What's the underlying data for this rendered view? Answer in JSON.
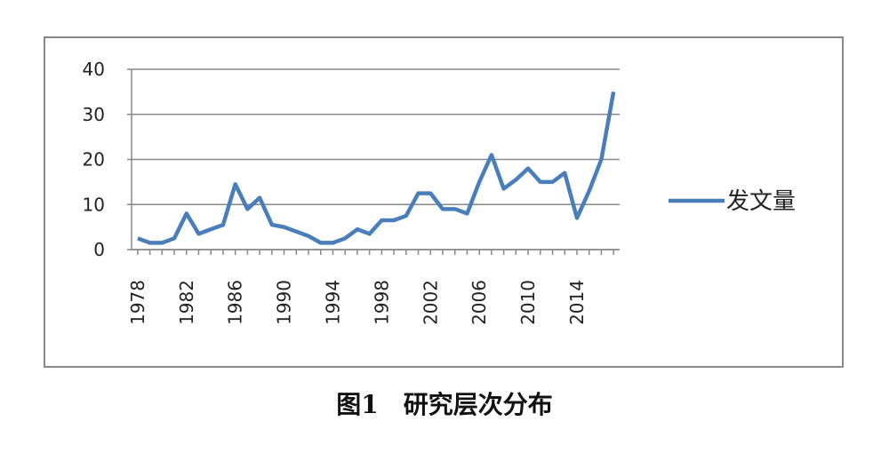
{
  "chart_data": {
    "type": "line",
    "x": [
      1978,
      1979,
      1980,
      1981,
      1982,
      1983,
      1984,
      1985,
      1986,
      1987,
      1988,
      1989,
      1990,
      1991,
      1992,
      1993,
      1994,
      1995,
      1996,
      1997,
      1998,
      1999,
      2000,
      2001,
      2002,
      2003,
      2004,
      2005,
      2006,
      2007,
      2008,
      2009,
      2010,
      2011,
      2012,
      2013,
      2014,
      2015,
      2016,
      2017
    ],
    "series": [
      {
        "name": "发文量",
        "color": "#4a7ebb",
        "values": [
          2.5,
          1.5,
          1.5,
          2.5,
          8,
          3.5,
          4.5,
          5.5,
          14.5,
          9,
          11.5,
          5.5,
          5,
          4,
          3,
          1.5,
          1.5,
          2.5,
          4.5,
          3.5,
          6.5,
          6.5,
          7.5,
          12.5,
          12.5,
          9,
          9,
          8,
          15,
          21,
          13.5,
          15.5,
          18,
          15,
          15,
          17,
          7,
          13,
          20,
          35
        ]
      }
    ],
    "xlim": [
      1977.5,
      2017.5
    ],
    "xticks": [
      1978,
      1982,
      1986,
      1990,
      1994,
      1998,
      2002,
      2006,
      2010,
      2014
    ],
    "ylim": [
      0,
      40
    ],
    "yticks": [
      0,
      10,
      20,
      30,
      40
    ],
    "grid": true,
    "legend": "right"
  },
  "caption": "图1　研究层次分布"
}
